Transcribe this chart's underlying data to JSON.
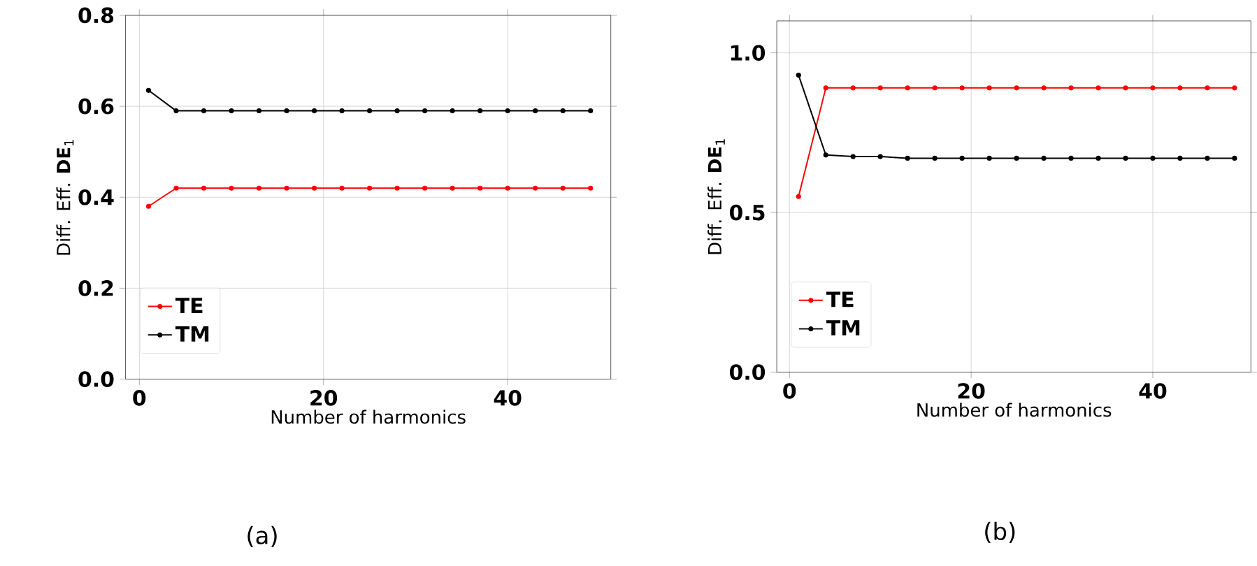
{
  "chart_data": [
    {
      "type": "line",
      "xlabel": "Number of harmonics",
      "ylabel": "Diff. Eff. **DE**$_{1}$",
      "x": [
        1,
        4,
        7,
        10,
        13,
        16,
        19,
        22,
        25,
        28,
        31,
        34,
        37,
        40,
        43,
        46,
        49
      ],
      "series": [
        {
          "name": "TE",
          "color": "#ff0000",
          "values": [
            0.38,
            0.42,
            0.42,
            0.42,
            0.42,
            0.42,
            0.42,
            0.42,
            0.42,
            0.42,
            0.42,
            0.42,
            0.42,
            0.42,
            0.42,
            0.42,
            0.42
          ]
        },
        {
          "name": "TM",
          "color": "#000000",
          "values": [
            0.635,
            0.59,
            0.59,
            0.59,
            0.59,
            0.59,
            0.59,
            0.59,
            0.59,
            0.59,
            0.59,
            0.59,
            0.59,
            0.59,
            0.59,
            0.59,
            0.59
          ]
        }
      ],
      "xlim": [
        -1.5,
        51.2
      ],
      "ylim": [
        0,
        0.8
      ],
      "xticks": [
        0,
        20,
        40
      ],
      "yticks": [
        {
          "value": 0,
          "label": "0.0"
        },
        0.2,
        0.4,
        0.6,
        0.8
      ],
      "grid": true,
      "legend": "bottom left",
      "marker": "circle",
      "line_style": "solid",
      "annotations": [
        "(a)"
      ]
    },
    {
      "type": "line",
      "xlabel": "Number of harmonics",
      "ylabel": "Diff. Eff. **DE**$_{1}$",
      "x": [
        1,
        4,
        7,
        10,
        13,
        16,
        19,
        22,
        25,
        28,
        31,
        34,
        37,
        40,
        43,
        46,
        49
      ],
      "series": [
        {
          "name": "TE",
          "color": "#ff0000",
          "values": [
            0.55,
            0.89,
            0.89,
            0.89,
            0.89,
            0.89,
            0.89,
            0.89,
            0.89,
            0.89,
            0.89,
            0.89,
            0.89,
            0.89,
            0.89,
            0.89,
            0.89
          ]
        },
        {
          "name": "TM",
          "color": "#000000",
          "values": [
            0.93,
            0.68,
            0.675,
            0.675,
            0.67,
            0.67,
            0.67,
            0.67,
            0.67,
            0.67,
            0.67,
            0.67,
            0.67,
            0.67,
            0.67,
            0.67,
            0.67
          ]
        }
      ],
      "xlim": [
        -1.4,
        50.8
      ],
      "ylim": [
        0,
        1.1
      ],
      "xticks": [
        0,
        20,
        40
      ],
      "yticks": [
        {
          "value": 0,
          "label": "0.0"
        },
        {
          "value": 0.5,
          "label": "0.5"
        },
        {
          "value": 1,
          "label": "1.0"
        }
      ],
      "grid": true,
      "legend": "bottom left",
      "marker": "circle",
      "line_style": "solid",
      "annotations": [
        "(b)"
      ]
    }
  ]
}
